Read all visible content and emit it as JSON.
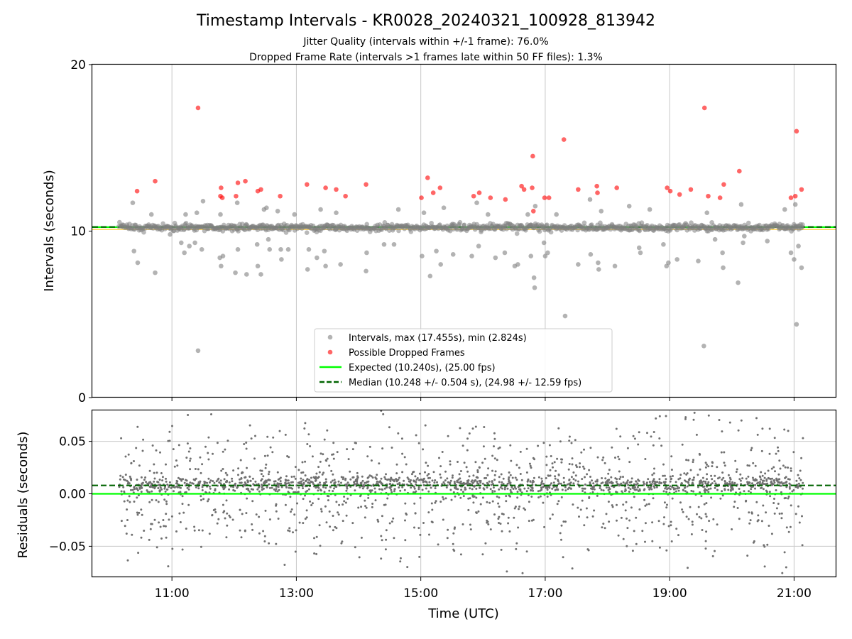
{
  "title": "Timestamp Intervals - KR0028_20240321_100928_813942",
  "subtitle_1": "Jitter Quality (intervals within +/-1 frame): 76.0%",
  "subtitle_2": "Dropped Frame Rate (intervals >1 frames late within 50 FF files): 1.3%",
  "colors": {
    "intervals": "#808080",
    "dropped": "#ff0000",
    "expected": "#00ff00",
    "median": "#006400",
    "threshold": "#ffcc33",
    "grid": "#c8c8c8"
  },
  "chart_data": [
    {
      "type": "scatter",
      "ylabel": "Intervals (seconds)",
      "ylim": [
        0,
        20
      ],
      "yticks": [
        0,
        10,
        20
      ],
      "xlim_hours": [
        9.72,
        21.68
      ],
      "xticks_hours": [
        11,
        13,
        15,
        17,
        19,
        21
      ],
      "grid": "x",
      "legend_placement": "lower-center",
      "legend": [
        "Intervals, max (17.455s), min (2.824s)",
        "Possible Dropped Frames",
        "Expected (10.240s), (25.00 fps)",
        "Median (10.248 +/- 0.504 s), (24.98 +/- 12.59 fps)"
      ],
      "expected": 10.24,
      "median": 10.248,
      "threshold": 10.1,
      "series": [
        {
          "name": "Intervals, max (17.455s), min (2.824s)",
          "x_range_hours": [
            10.15,
            21.15
          ],
          "points": [
            [
              10.37,
              11.7
            ],
            [
              10.39,
              8.8
            ],
            [
              10.45,
              8.1
            ],
            [
              10.67,
              11.0
            ],
            [
              10.73,
              7.5
            ],
            [
              10.97,
              9.8
            ],
            [
              11.15,
              9.3
            ],
            [
              11.2,
              8.7
            ],
            [
              11.22,
              11.0
            ],
            [
              11.28,
              9.1
            ],
            [
              11.37,
              9.3
            ],
            [
              11.4,
              11.1
            ],
            [
              11.42,
              2.82
            ],
            [
              11.48,
              8.9
            ],
            [
              11.5,
              11.8
            ],
            [
              11.77,
              8.4
            ],
            [
              11.79,
              7.9
            ],
            [
              11.78,
              11.0
            ],
            [
              11.82,
              8.5
            ],
            [
              12.02,
              7.5
            ],
            [
              12.06,
              8.9
            ],
            [
              12.05,
              11.7
            ],
            [
              12.2,
              7.4
            ],
            [
              12.38,
              7.9
            ],
            [
              12.37,
              9.2
            ],
            [
              12.43,
              7.4
            ],
            [
              12.48,
              11.3
            ],
            [
              12.52,
              11.4
            ],
            [
              12.55,
              9.5
            ],
            [
              12.57,
              8.9
            ],
            [
              12.7,
              11.2
            ],
            [
              12.75,
              8.9
            ],
            [
              12.76,
              8.3
            ],
            [
              12.87,
              8.9
            ],
            [
              12.97,
              11.0
            ],
            [
              13.18,
              7.7
            ],
            [
              13.2,
              8.9
            ],
            [
              13.33,
              8.4
            ],
            [
              13.39,
              11.3
            ],
            [
              13.45,
              8.8
            ],
            [
              13.47,
              7.9
            ],
            [
              13.64,
              11.1
            ],
            [
              13.71,
              8.0
            ],
            [
              14.13,
              8.7
            ],
            [
              14.12,
              7.6
            ],
            [
              14.41,
              9.2
            ],
            [
              14.57,
              9.2
            ],
            [
              14.64,
              11.3
            ],
            [
              15.02,
              8.5
            ],
            [
              15.05,
              11.1
            ],
            [
              15.15,
              7.3
            ],
            [
              15.25,
              8.8
            ],
            [
              15.32,
              8.0
            ],
            [
              15.37,
              11.4
            ],
            [
              15.52,
              8.6
            ],
            [
              15.82,
              8.5
            ],
            [
              15.9,
              11.7
            ],
            [
              15.93,
              9.1
            ],
            [
              16.08,
              11.0
            ],
            [
              16.2,
              8.4
            ],
            [
              16.35,
              8.7
            ],
            [
              16.51,
              7.9
            ],
            [
              16.56,
              8.0
            ],
            [
              16.72,
              11.0
            ],
            [
              16.77,
              8.5
            ],
            [
              16.82,
              7.2
            ],
            [
              16.83,
              6.6
            ],
            [
              16.84,
              11.5
            ],
            [
              16.98,
              9.3
            ],
            [
              17.0,
              8.5
            ],
            [
              17.04,
              8.7
            ],
            [
              17.18,
              11.0
            ],
            [
              17.32,
              4.9
            ],
            [
              17.53,
              8.0
            ],
            [
              17.72,
              11.9
            ],
            [
              17.73,
              8.6
            ],
            [
              17.85,
              8.1
            ],
            [
              17.86,
              7.7
            ],
            [
              17.9,
              11.2
            ],
            [
              18.12,
              7.9
            ],
            [
              18.35,
              11.5
            ],
            [
              18.51,
              9.0
            ],
            [
              18.53,
              8.7
            ],
            [
              18.68,
              11.3
            ],
            [
              18.9,
              9.2
            ],
            [
              18.95,
              7.9
            ],
            [
              18.98,
              8.1
            ],
            [
              19.12,
              8.3
            ],
            [
              19.46,
              8.2
            ],
            [
              19.55,
              3.1
            ],
            [
              19.6,
              11.1
            ],
            [
              19.73,
              9.5
            ],
            [
              19.85,
              8.7
            ],
            [
              19.86,
              7.8
            ],
            [
              20.1,
              6.9
            ],
            [
              20.15,
              11.6
            ],
            [
              20.18,
              9.3
            ],
            [
              20.2,
              9.7
            ],
            [
              20.57,
              9.4
            ],
            [
              20.85,
              11.3
            ],
            [
              20.95,
              8.7
            ],
            [
              21.0,
              8.3
            ],
            [
              21.02,
              11.6
            ],
            [
              21.04,
              4.4
            ],
            [
              21.07,
              9.1
            ],
            [
              21.12,
              7.8
            ]
          ]
        },
        {
          "name": "Possible Dropped Frames",
          "points": [
            [
              10.44,
              12.4
            ],
            [
              10.73,
              13.0
            ],
            [
              11.42,
              17.4
            ],
            [
              11.78,
              12.1
            ],
            [
              11.79,
              12.6
            ],
            [
              11.81,
              12.0
            ],
            [
              12.06,
              12.9
            ],
            [
              12.03,
              12.1
            ],
            [
              12.18,
              13.0
            ],
            [
              12.38,
              12.4
            ],
            [
              12.43,
              12.5
            ],
            [
              12.74,
              12.1
            ],
            [
              13.17,
              12.8
            ],
            [
              13.47,
              12.6
            ],
            [
              13.64,
              12.5
            ],
            [
              13.79,
              12.1
            ],
            [
              14.12,
              12.8
            ],
            [
              15.01,
              12.0
            ],
            [
              15.11,
              13.2
            ],
            [
              15.2,
              12.3
            ],
            [
              15.31,
              12.6
            ],
            [
              15.85,
              12.1
            ],
            [
              15.94,
              12.3
            ],
            [
              16.12,
              12.0
            ],
            [
              16.36,
              11.9
            ],
            [
              16.62,
              12.7
            ],
            [
              16.66,
              12.5
            ],
            [
              16.79,
              12.6
            ],
            [
              16.81,
              11.2
            ],
            [
              16.8,
              14.5
            ],
            [
              16.99,
              12.0
            ],
            [
              17.06,
              12.0
            ],
            [
              17.3,
              15.5
            ],
            [
              17.53,
              12.5
            ],
            [
              17.83,
              12.7
            ],
            [
              17.84,
              12.3
            ],
            [
              18.15,
              12.6
            ],
            [
              18.96,
              12.6
            ],
            [
              19.01,
              12.4
            ],
            [
              19.16,
              12.2
            ],
            [
              19.34,
              12.5
            ],
            [
              19.56,
              17.4
            ],
            [
              19.62,
              12.1
            ],
            [
              19.81,
              12.0
            ],
            [
              19.87,
              12.8
            ],
            [
              20.12,
              13.6
            ],
            [
              20.95,
              12.0
            ],
            [
              21.02,
              12.1
            ],
            [
              21.04,
              16.0
            ],
            [
              21.12,
              12.5
            ]
          ]
        },
        {
          "name": "Expected (10.240s), (25.00 fps)",
          "y": 10.24
        },
        {
          "name": "Median (10.248 +/- 0.504 s), (24.98 +/- 12.59 fps)",
          "y": 10.248
        }
      ]
    },
    {
      "type": "scatter",
      "xlabel": "Time (UTC)",
      "ylabel": "Residuals (seconds)",
      "ylim": [
        -0.0795,
        0.0795
      ],
      "yticks": [
        -0.05,
        0.0,
        0.05
      ],
      "ytick_labels": [
        "−0.05",
        "0.00",
        "0.05"
      ],
      "xtick_labels": [
        "11:00",
        "13:00",
        "15:00",
        "17:00",
        "19:00",
        "21:00"
      ],
      "xlim_hours": [
        9.72,
        21.68
      ],
      "grid": "both",
      "series": [
        {
          "name": "residuals",
          "x_range_hours": [
            10.15,
            21.15
          ],
          "spread": "0.00 to 0.02 core, tails to +/-0.08"
        },
        {
          "name": "expected",
          "y": 0.0
        },
        {
          "name": "median",
          "y": 0.008
        }
      ]
    }
  ]
}
